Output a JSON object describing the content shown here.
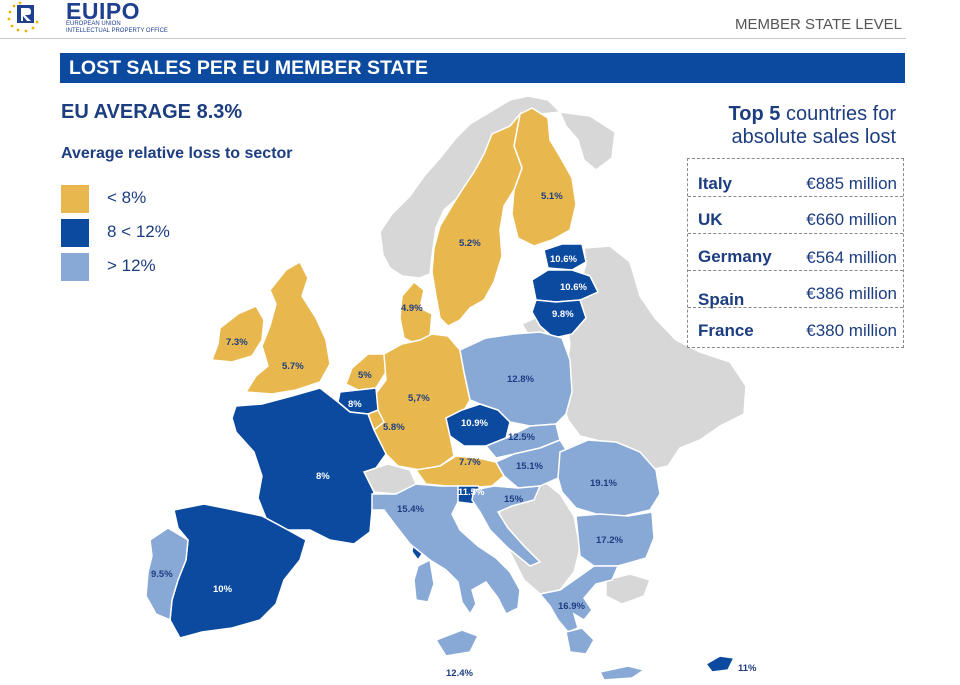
{
  "header": {
    "logo_word": "EUIPO",
    "logo_sub_line1": "EUROPEAN UNION",
    "logo_sub_line2": "INTELLECTUAL PROPERTY OFFICE",
    "section_label": "MEMBER STATE LEVEL"
  },
  "banner": {
    "title": "LOST SALES PER EU MEMBER STATE"
  },
  "eu_average": "EU AVERAGE 8.3%",
  "legend": {
    "title": "Average relative loss to sector",
    "items": [
      {
        "label": "< 8%",
        "color": "#e8b84f"
      },
      {
        "label": "8 < 12%",
        "color": "#0b4a9e"
      },
      {
        "label": "> 12%",
        "color": "#88a9d6"
      }
    ]
  },
  "top5": {
    "title_bold": "Top 5",
    "title_rest": " countries for",
    "title_line2": "absolute sales lost",
    "rows": [
      {
        "country": "Italy",
        "value": "€885 million"
      },
      {
        "country": "UK",
        "value": "€660 million"
      },
      {
        "country": "Germany",
        "value": "€564 million"
      },
      {
        "country": "Spain",
        "value": "€386 million"
      },
      {
        "country": "France",
        "value": "€380 million"
      }
    ]
  },
  "map": {
    "colors": {
      "low": "#e8b84f",
      "mid": "#0b4a9e",
      "high": "#88a9d6",
      "non_eu": "#d7d7d7"
    },
    "labels": {
      "finland": "5.1%",
      "sweden": "5.2%",
      "denmark": "4.9%",
      "estonia": "10.6%",
      "latvia": "10.6%",
      "lithuania": "9.8%",
      "ireland": "7.3%",
      "uk": "5.7%",
      "netherlands": "5%",
      "belgium": "8%",
      "germany": "5,7%",
      "luxembourg": "5.8%",
      "poland": "12.8%",
      "czech": "10.9%",
      "slovakia": "12.5%",
      "austria": "7.7%",
      "hungary": "15.1%",
      "slovenia": "11.5%",
      "croatia": "15%",
      "romania": "19.1%",
      "bulgaria": "17.2%",
      "france": "8%",
      "italy": "15.4%",
      "portugal": "9.5%",
      "spain": "10%",
      "greece": "16.9%",
      "malta": "12.4%",
      "cyprus": "11%"
    }
  }
}
